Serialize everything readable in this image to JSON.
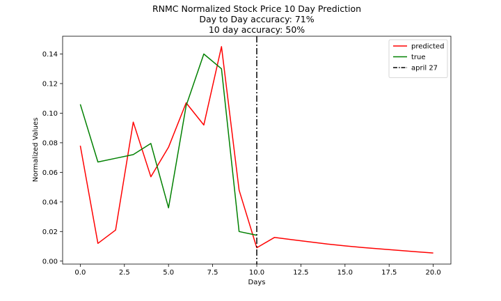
{
  "chart_data": {
    "type": "line",
    "title_lines": [
      "RNMC Normalized Stock Price 10 Day Prediction",
      "Day to Day accuracy: 71%",
      "10 day accuracy: 50%"
    ],
    "xlabel": "Days",
    "ylabel": "Normalized Values",
    "xlim": [
      -1,
      21
    ],
    "ylim": [
      -0.002,
      0.152
    ],
    "x_ticks": [
      0.0,
      2.5,
      5.0,
      7.5,
      10.0,
      12.5,
      15.0,
      17.5,
      20.0
    ],
    "x_tick_labels": [
      "0.0",
      "2.5",
      "5.0",
      "7.5",
      "10.0",
      "12.5",
      "15.0",
      "17.5",
      "20.0"
    ],
    "y_ticks": [
      0.0,
      0.02,
      0.04,
      0.06,
      0.08,
      0.1,
      0.12,
      0.14
    ],
    "y_tick_labels": [
      "0.00",
      "0.02",
      "0.04",
      "0.06",
      "0.08",
      "0.10",
      "0.12",
      "0.14"
    ],
    "grid": false,
    "legend_position": "top-right",
    "series": [
      {
        "name": "predicted",
        "color": "#ff0000",
        "x": [
          0,
          1,
          2,
          3,
          4,
          5,
          6,
          7,
          8,
          9,
          10,
          11,
          12,
          13,
          14,
          15,
          16,
          17,
          18,
          19,
          20
        ],
        "y": [
          0.078,
          0.012,
          0.021,
          0.094,
          0.057,
          0.077,
          0.107,
          0.092,
          0.145,
          0.048,
          0.009,
          0.016,
          0.0145,
          0.013,
          0.0115,
          0.0103,
          0.0092,
          0.0082,
          0.0073,
          0.0064,
          0.0055
        ]
      },
      {
        "name": "true",
        "color": "#008000",
        "x": [
          0,
          1,
          2,
          3,
          4,
          5,
          6,
          7,
          8,
          9,
          10
        ],
        "y": [
          0.106,
          0.067,
          0.0695,
          0.072,
          0.0795,
          0.036,
          0.105,
          0.14,
          0.13,
          0.02,
          0.0175
        ]
      }
    ],
    "vline": {
      "name": "april 27",
      "x": 10,
      "color": "#000000",
      "style": "dashdot"
    }
  }
}
